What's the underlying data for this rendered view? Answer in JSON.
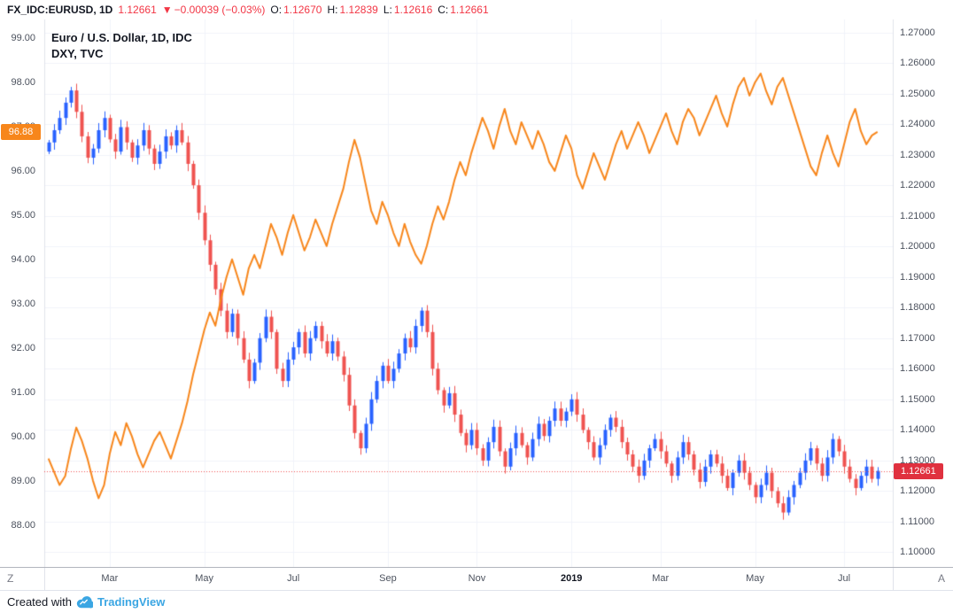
{
  "header": {
    "symbol": "FX_IDC:EURUSD, 1D",
    "last": "1.12661",
    "direction": "▼",
    "change": "−0.00039 (−0.03%)",
    "o_label": "O:",
    "o_value": "1.12670",
    "h_label": "H:",
    "h_value": "1.12839",
    "l_label": "L:",
    "l_value": "1.12616",
    "c_label": "C:",
    "c_value": "1.12661"
  },
  "legend": {
    "line1": "Euro / U.S. Dollar, 1D, IDC",
    "line2": "DXY, TVC"
  },
  "axes": {
    "left_badge": "96.88",
    "right_badge": "1.12661",
    "timezone_button": "Z",
    "autoscale_button": "A"
  },
  "footer": {
    "created_with": "Created with",
    "brand": "TradingView"
  },
  "colors": {
    "up": "#2962FF",
    "down": "#EF5350",
    "dxy_line": "#F7861B",
    "dxy_badge": "#F7861B",
    "price_line": "#EF5350",
    "price_badge": "#E0313F",
    "grid": "#F0F3FA",
    "axis_border": "#E0E3EB",
    "axis_text": "#4C525E",
    "header_value": "#F23645",
    "text_dark": "#131722",
    "brand_blue": "#3BA6E3"
  },
  "chart_data": {
    "type": "line",
    "title": "Euro / U.S. Dollar, 1D, IDC with DXY, TVC overlay",
    "legend_position": "top-left",
    "grid": true,
    "x_ticks": {
      "labels": [
        "Mar",
        "May",
        "Jul",
        "Sep",
        "Nov",
        "2019",
        "Mar",
        "May",
        "Jul"
      ],
      "indices": [
        11,
        28,
        44,
        61,
        77,
        94,
        110,
        127,
        143
      ]
    },
    "left_axis": {
      "min": 87.05,
      "max": 99.42,
      "tick_values": [
        88,
        89,
        90,
        91,
        92,
        93,
        94,
        95,
        96,
        97,
        98,
        99
      ],
      "tick_labels": [
        "88.00",
        "89.00",
        "90.00",
        "91.00",
        "92.00",
        "93.00",
        "94.00",
        "95.00",
        "96.00",
        "97.00",
        "98.00",
        "99.00"
      ]
    },
    "right_axis": {
      "min": 1.0952,
      "max": 1.2742,
      "tick_values": [
        1.1,
        1.11,
        1.12,
        1.13,
        1.14,
        1.15,
        1.16,
        1.17,
        1.18,
        1.19,
        1.2,
        1.21,
        1.22,
        1.23,
        1.24,
        1.25,
        1.26,
        1.27
      ],
      "tick_labels": [
        "1.10000",
        "1.11000",
        "1.12000",
        "1.13000",
        "1.14000",
        "1.15000",
        "1.16000",
        "1.17000",
        "1.18000",
        "1.19000",
        "1.20000",
        "1.21000",
        "1.22000",
        "1.23000",
        "1.24000",
        "1.25000",
        "1.26000",
        "1.27000"
      ]
    },
    "series": [
      {
        "name": "DXY, TVC",
        "type": "line",
        "axis": "left",
        "last_value": 96.88,
        "values": [
          89.5,
          89.2,
          88.9,
          89.1,
          89.7,
          90.2,
          89.9,
          89.5,
          89.0,
          88.6,
          88.9,
          89.6,
          90.1,
          89.8,
          90.3,
          90.0,
          89.6,
          89.3,
          89.6,
          89.9,
          90.1,
          89.8,
          89.5,
          89.9,
          90.3,
          90.8,
          91.4,
          91.9,
          92.4,
          92.8,
          92.5,
          93.1,
          93.6,
          94.0,
          93.6,
          93.2,
          93.8,
          94.1,
          93.8,
          94.3,
          94.8,
          94.5,
          94.1,
          94.6,
          95.0,
          94.6,
          94.2,
          94.5,
          94.9,
          94.6,
          94.3,
          94.8,
          95.2,
          95.6,
          96.2,
          96.7,
          96.3,
          95.7,
          95.1,
          94.8,
          95.3,
          95.0,
          94.6,
          94.3,
          94.8,
          94.4,
          94.1,
          93.9,
          94.3,
          94.8,
          95.2,
          94.9,
          95.3,
          95.8,
          96.2,
          95.9,
          96.4,
          96.8,
          97.2,
          96.9,
          96.5,
          97.0,
          97.4,
          96.9,
          96.6,
          97.1,
          96.8,
          96.5,
          96.9,
          96.6,
          96.2,
          96.0,
          96.4,
          96.8,
          96.5,
          95.9,
          95.6,
          96.0,
          96.4,
          96.1,
          95.8,
          96.2,
          96.6,
          96.9,
          96.5,
          96.8,
          97.1,
          96.8,
          96.4,
          96.7,
          97.0,
          97.3,
          96.9,
          96.6,
          97.1,
          97.4,
          97.2,
          96.8,
          97.1,
          97.4,
          97.7,
          97.3,
          97.0,
          97.5,
          97.9,
          98.1,
          97.7,
          98.0,
          98.2,
          97.8,
          97.5,
          97.9,
          98.1,
          97.7,
          97.3,
          96.9,
          96.5,
          96.1,
          95.9,
          96.4,
          96.8,
          96.4,
          96.1,
          96.6,
          97.1,
          97.4,
          96.9,
          96.6,
          96.8,
          96.88
        ]
      },
      {
        "name": "EURUSD",
        "type": "candlestick",
        "axis": "right",
        "last_value": 1.12661,
        "close": [
          1.234,
          1.238,
          1.242,
          1.247,
          1.251,
          1.244,
          1.236,
          1.229,
          1.232,
          1.238,
          1.242,
          1.235,
          1.231,
          1.239,
          1.234,
          1.229,
          1.233,
          1.238,
          1.232,
          1.227,
          1.231,
          1.236,
          1.233,
          1.238,
          1.234,
          1.227,
          1.22,
          1.211,
          1.202,
          1.194,
          1.186,
          1.179,
          1.172,
          1.178,
          1.17,
          1.163,
          1.156,
          1.162,
          1.17,
          1.177,
          1.172,
          1.16,
          1.156,
          1.163,
          1.167,
          1.172,
          1.165,
          1.17,
          1.174,
          1.169,
          1.165,
          1.169,
          1.164,
          1.158,
          1.148,
          1.139,
          1.134,
          1.142,
          1.15,
          1.156,
          1.161,
          1.156,
          1.16,
          1.165,
          1.17,
          1.167,
          1.174,
          1.179,
          1.172,
          1.16,
          1.153,
          1.148,
          1.152,
          1.145,
          1.139,
          1.135,
          1.14,
          1.134,
          1.13,
          1.136,
          1.141,
          1.133,
          1.128,
          1.134,
          1.139,
          1.135,
          1.131,
          1.137,
          1.142,
          1.138,
          1.143,
          1.147,
          1.143,
          1.146,
          1.15,
          1.145,
          1.14,
          1.136,
          1.131,
          1.135,
          1.14,
          1.144,
          1.141,
          1.136,
          1.132,
          1.128,
          1.125,
          1.13,
          1.134,
          1.137,
          1.133,
          1.129,
          1.125,
          1.131,
          1.136,
          1.132,
          1.127,
          1.123,
          1.128,
          1.132,
          1.129,
          1.125,
          1.121,
          1.126,
          1.13,
          1.126,
          1.122,
          1.118,
          1.122,
          1.126,
          1.12,
          1.116,
          1.113,
          1.118,
          1.122,
          1.126,
          1.13,
          1.134,
          1.129,
          1.125,
          1.131,
          1.137,
          1.133,
          1.128,
          1.124,
          1.121,
          1.125,
          1.128,
          1.124,
          1.12661
        ]
      }
    ]
  }
}
